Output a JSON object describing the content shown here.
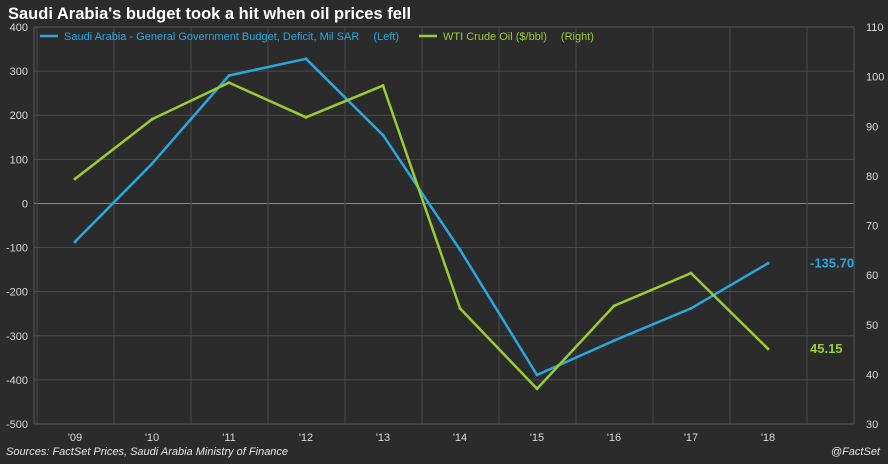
{
  "title": "Saudi Arabia's budget took a hit when oil prices fell",
  "footer": {
    "source": "Sources: FactSet Prices, Saudi Arabia Ministry of Finance",
    "brand": "@FactSet"
  },
  "colors": {
    "background": "#2b2b2b",
    "grid": "#4a4a4a",
    "axis_text": "#d9d9d9",
    "budget": "#29a8e0",
    "oil": "#9acd32"
  },
  "chart_data": {
    "type": "line",
    "x": [
      "'09",
      "'10",
      "'11",
      "'12",
      "'13",
      "'14",
      "'15",
      "'16",
      "'17",
      "'18"
    ],
    "y_left": {
      "ylim": [
        -500,
        400
      ],
      "ticks": [
        400,
        300,
        200,
        100,
        0,
        -100,
        -200,
        -300,
        -400,
        -500
      ]
    },
    "y_right": {
      "ylim": [
        30,
        110
      ],
      "ticks": [
        110,
        100,
        90,
        80,
        70,
        60,
        50,
        40,
        30
      ]
    },
    "grid": true,
    "legend_position": "top-left",
    "series": [
      {
        "name": "Saudi Arabia - General Government Budget, Deficit, Mil SAR",
        "axis_note": "(Left)",
        "axis": "left",
        "color": "#29a8e0",
        "values": [
          -87,
          90,
          290,
          328,
          155,
          -105,
          -389,
          -311,
          -238,
          -135.7
        ],
        "end_label": "-135.70"
      },
      {
        "name": "WTI Crude Oil ($/bbl)",
        "axis_note": "(Right)",
        "axis": "right",
        "color": "#9acd32",
        "values": [
          79.4,
          91.4,
          98.8,
          91.8,
          98.2,
          53.3,
          37.1,
          53.8,
          60.4,
          45.15
        ],
        "end_label": "45.15"
      }
    ]
  }
}
